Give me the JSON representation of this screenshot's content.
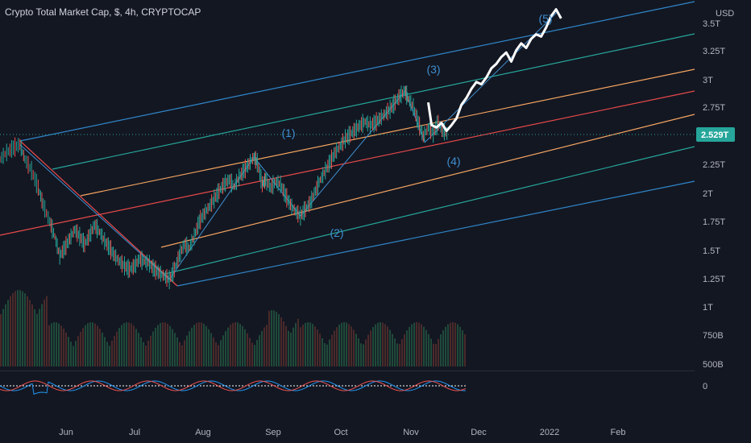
{
  "chart_data": {
    "type": "candlestick",
    "title": "Crypto Total Market Cap, $, 4h, CRYPTOCAP",
    "currency_label": "USD",
    "last_price_label": "2.529T",
    "y_tick_labels": [
      "3.5T",
      "3.25T",
      "3T",
      "2.75T",
      "2.25T",
      "2T",
      "1.75T",
      "1.5T",
      "1.25T",
      "1T",
      "750B",
      "500B"
    ],
    "oscillator_tick_label": "0",
    "x_tick_labels": [
      "Jun",
      "Jul",
      "Aug",
      "Sep",
      "Oct",
      "Nov",
      "Dec",
      "2022",
      "Feb"
    ],
    "wave_labels": [
      "(1)",
      "(2)",
      "(3)",
      "(4)",
      "(5)"
    ],
    "price_path": [
      [
        0.0,
        2.3
      ],
      [
        0.4,
        2.36
      ],
      [
        0.8,
        2.4
      ],
      [
        1.2,
        2.43
      ],
      [
        1.5,
        2.3
      ],
      [
        1.9,
        2.2
      ],
      [
        2.3,
        2.05
      ],
      [
        2.6,
        1.9
      ],
      [
        3.0,
        1.75
      ],
      [
        3.3,
        1.62
      ],
      [
        3.6,
        1.45
      ],
      [
        3.9,
        1.52
      ],
      [
        4.2,
        1.6
      ],
      [
        4.5,
        1.68
      ],
      [
        4.8,
        1.62
      ],
      [
        5.1,
        1.55
      ],
      [
        5.4,
        1.63
      ],
      [
        5.7,
        1.72
      ],
      [
        6.0,
        1.66
      ],
      [
        6.3,
        1.58
      ],
      [
        6.6,
        1.52
      ],
      [
        6.9,
        1.45
      ],
      [
        7.2,
        1.4
      ],
      [
        7.5,
        1.36
      ],
      [
        7.8,
        1.33
      ],
      [
        8.1,
        1.36
      ],
      [
        8.4,
        1.42
      ],
      [
        8.7,
        1.4
      ],
      [
        9.0,
        1.38
      ],
      [
        9.3,
        1.33
      ],
      [
        9.6,
        1.3
      ],
      [
        9.9,
        1.27
      ],
      [
        10.2,
        1.24
      ],
      [
        10.5,
        1.33
      ],
      [
        10.8,
        1.45
      ],
      [
        11.1,
        1.55
      ],
      [
        11.4,
        1.52
      ],
      [
        11.7,
        1.62
      ],
      [
        12.0,
        1.75
      ],
      [
        12.3,
        1.82
      ],
      [
        12.6,
        1.88
      ],
      [
        12.9,
        1.95
      ],
      [
        13.2,
        2.02
      ],
      [
        13.5,
        2.08
      ],
      [
        13.8,
        2.12
      ],
      [
        14.1,
        2.06
      ],
      [
        14.4,
        2.14
      ],
      [
        14.7,
        2.2
      ],
      [
        15.0,
        2.26
      ],
      [
        15.3,
        2.32
      ],
      [
        15.5,
        2.27
      ],
      [
        15.8,
        2.08
      ],
      [
        16.0,
        2.12
      ],
      [
        16.3,
        2.05
      ],
      [
        16.6,
        2.1
      ],
      [
        16.9,
        2.08
      ],
      [
        17.2,
        1.98
      ],
      [
        17.5,
        1.9
      ],
      [
        17.8,
        1.84
      ],
      [
        18.1,
        1.8
      ],
      [
        18.4,
        1.86
      ],
      [
        18.7,
        1.92
      ],
      [
        19.0,
        2.02
      ],
      [
        19.3,
        2.12
      ],
      [
        19.6,
        2.2
      ],
      [
        19.9,
        2.28
      ],
      [
        20.2,
        2.36
      ],
      [
        20.5,
        2.42
      ],
      [
        20.8,
        2.48
      ],
      [
        21.1,
        2.52
      ],
      [
        21.4,
        2.56
      ],
      [
        21.7,
        2.6
      ],
      [
        22.0,
        2.63
      ],
      [
        22.3,
        2.6
      ],
      [
        22.6,
        2.62
      ],
      [
        22.9,
        2.66
      ],
      [
        23.2,
        2.7
      ],
      [
        23.5,
        2.74
      ],
      [
        23.8,
        2.8
      ],
      [
        24.1,
        2.86
      ],
      [
        24.4,
        2.9
      ],
      [
        24.6,
        2.83
      ],
      [
        24.9,
        2.76
      ],
      [
        25.2,
        2.62
      ],
      [
        25.5,
        2.5
      ],
      [
        25.8,
        2.58
      ],
      [
        26.1,
        2.53
      ],
      [
        26.4,
        2.62
      ],
      [
        26.7,
        2.55
      ],
      [
        27.0,
        2.52
      ]
    ],
    "projection_path": [
      [
        25.8,
        2.8
      ],
      [
        26.0,
        2.6
      ],
      [
        26.3,
        2.58
      ],
      [
        26.6,
        2.62
      ],
      [
        26.9,
        2.55
      ],
      [
        27.2,
        2.6
      ],
      [
        27.5,
        2.66
      ],
      [
        27.8,
        2.78
      ],
      [
        28.1,
        2.84
      ],
      [
        28.4,
        2.92
      ],
      [
        28.7,
        2.98
      ],
      [
        29.0,
        2.96
      ],
      [
        29.3,
        3.02
      ],
      [
        29.6,
        3.1
      ],
      [
        29.9,
        3.14
      ],
      [
        30.2,
        3.2
      ],
      [
        30.5,
        3.24
      ],
      [
        30.8,
        3.16
      ],
      [
        31.1,
        3.26
      ],
      [
        31.4,
        3.32
      ],
      [
        31.7,
        3.28
      ],
      [
        32.0,
        3.36
      ],
      [
        32.3,
        3.4
      ],
      [
        32.6,
        3.38
      ],
      [
        32.9,
        3.46
      ],
      [
        33.2,
        3.56
      ],
      [
        33.5,
        3.62
      ],
      [
        33.8,
        3.54
      ]
    ],
    "wave_points": [
      [
        1.2,
        2.43
      ],
      [
        10.2,
        1.24
      ],
      [
        15.3,
        2.32
      ],
      [
        18.1,
        1.8
      ],
      [
        24.4,
        2.9
      ],
      [
        25.6,
        2.45
      ],
      [
        33.6,
        3.6
      ]
    ]
  }
}
